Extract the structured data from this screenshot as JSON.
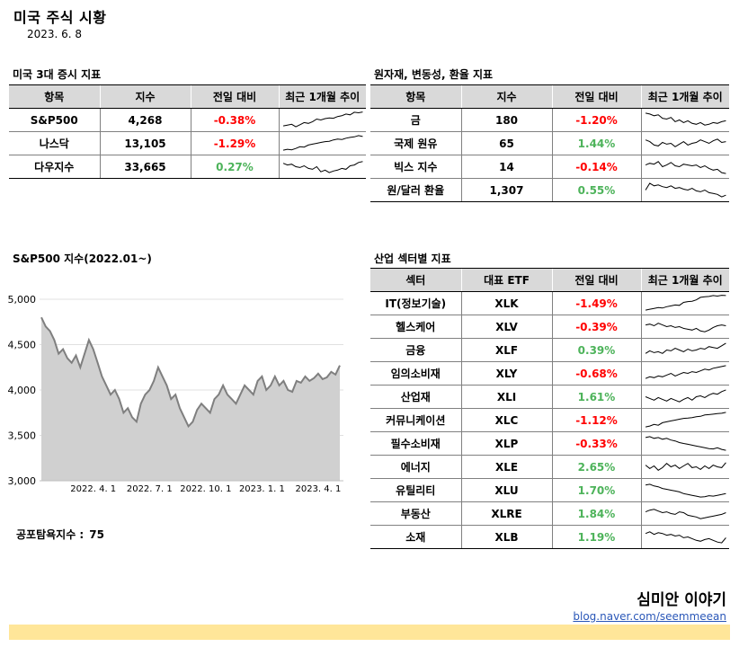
{
  "header": {
    "title": "미국 주식 시황",
    "date": "2023. 6. 8"
  },
  "indices": {
    "title": "미국 3대 증시 지표",
    "columns": [
      "항목",
      "지수",
      "전일 대비",
      "최근 1개월 추이"
    ],
    "rows": [
      {
        "name": "S&P500",
        "value": "4,268",
        "change": "-0.38%",
        "dir": "neg",
        "trend": [
          0.15,
          0.2,
          0.25,
          0.1,
          0.22,
          0.35,
          0.3,
          0.4,
          0.55,
          0.5,
          0.58,
          0.62,
          0.6,
          0.7,
          0.75,
          0.85,
          0.8,
          0.95,
          0.92,
          0.97
        ]
      },
      {
        "name": "나스닥",
        "value": "13,105",
        "change": "-1.29%",
        "dir": "neg",
        "trend": [
          0.1,
          0.15,
          0.12,
          0.2,
          0.3,
          0.28,
          0.4,
          0.45,
          0.5,
          0.55,
          0.6,
          0.62,
          0.7,
          0.75,
          0.72,
          0.8,
          0.85,
          0.88,
          0.95,
          0.9
        ]
      },
      {
        "name": "다우지수",
        "value": "33,665",
        "change": "0.27%",
        "dir": "pos",
        "trend": [
          0.7,
          0.6,
          0.65,
          0.5,
          0.45,
          0.55,
          0.4,
          0.35,
          0.5,
          0.2,
          0.3,
          0.15,
          0.25,
          0.3,
          0.4,
          0.35,
          0.55,
          0.6,
          0.75,
          0.8
        ]
      }
    ]
  },
  "commodities": {
    "title": "원자재, 변동성, 환율 지표",
    "columns": [
      "항목",
      "지수",
      "전일 대비",
      "최근 1개월 추이"
    ],
    "rows": [
      {
        "name": "금",
        "value": "180",
        "change": "-1.20%",
        "dir": "neg",
        "trend": [
          0.9,
          0.85,
          0.75,
          0.8,
          0.6,
          0.55,
          0.65,
          0.4,
          0.5,
          0.35,
          0.45,
          0.3,
          0.25,
          0.35,
          0.2,
          0.25,
          0.35,
          0.3,
          0.4,
          0.45
        ]
      },
      {
        "name": "국제 원유",
        "value": "65",
        "change": "1.44%",
        "dir": "pos",
        "trend": [
          0.7,
          0.6,
          0.4,
          0.35,
          0.55,
          0.45,
          0.5,
          0.3,
          0.45,
          0.6,
          0.4,
          0.5,
          0.55,
          0.7,
          0.6,
          0.5,
          0.65,
          0.75,
          0.55,
          0.6
        ]
      },
      {
        "name": "빅스 지수",
        "value": "14",
        "change": "-0.14%",
        "dir": "neg",
        "trend": [
          0.6,
          0.7,
          0.65,
          0.8,
          0.5,
          0.6,
          0.75,
          0.55,
          0.5,
          0.65,
          0.6,
          0.55,
          0.6,
          0.45,
          0.55,
          0.4,
          0.3,
          0.35,
          0.15,
          0.1
        ]
      },
      {
        "name": "원/달러 환율",
        "value": "1,307",
        "change": "0.55%",
        "dir": "pos",
        "trend": [
          0.5,
          0.9,
          0.75,
          0.8,
          0.7,
          0.65,
          0.75,
          0.6,
          0.65,
          0.55,
          0.5,
          0.6,
          0.45,
          0.4,
          0.5,
          0.35,
          0.3,
          0.25,
          0.1,
          0.2
        ]
      }
    ]
  },
  "sp500_chart": {
    "title": "S&P500 지수(2022.01~)"
  },
  "chart_data": {
    "type": "area",
    "ylim": [
      3000,
      5000
    ],
    "yticks": [
      "3,000",
      "3,500",
      "4,000",
      "4,500",
      "5,000"
    ],
    "xticks": [
      "2022. 4. 1",
      "2022. 7. 1",
      "2022. 10. 1",
      "2023. 1. 1",
      "2023. 4. 1"
    ],
    "xtick_index": [
      12,
      25,
      38,
      51,
      64
    ],
    "series": [
      {
        "values": [
          4800,
          4700,
          4650,
          4550,
          4400,
          4450,
          4350,
          4300,
          4380,
          4250,
          4400,
          4550,
          4450,
          4300,
          4150,
          4050,
          3950,
          4000,
          3900,
          3750,
          3800,
          3700,
          3650,
          3850,
          3950,
          4000,
          4100,
          4250,
          4150,
          4050,
          3900,
          3950,
          3800,
          3700,
          3600,
          3650,
          3780,
          3850,
          3800,
          3750,
          3900,
          3950,
          4050,
          3950,
          3900,
          3850,
          3950,
          4050,
          4000,
          3950,
          4100,
          4150,
          4000,
          4050,
          4150,
          4050,
          4100,
          4000,
          3980,
          4100,
          4080,
          4150,
          4100,
          4130,
          4180,
          4120,
          4140,
          4200,
          4170,
          4270
        ]
      }
    ]
  },
  "fear_greed": {
    "label": "공포탐욕지수 :",
    "value": "75"
  },
  "sectors": {
    "title": "산업 섹터별 지표",
    "columns": [
      "섹터",
      "대표 ETF",
      "전일 대비",
      "최근 1개월 추이"
    ],
    "rows": [
      {
        "name": "IT(정보기술)",
        "etf": "XLK",
        "change": "-1.49%",
        "dir": "neg",
        "trend": [
          0.1,
          0.15,
          0.2,
          0.25,
          0.22,
          0.3,
          0.35,
          0.4,
          0.38,
          0.55,
          0.6,
          0.62,
          0.7,
          0.85,
          0.88,
          0.9,
          0.95,
          0.92,
          0.97,
          0.95
        ]
      },
      {
        "name": "헬스케어",
        "etf": "XLV",
        "change": "-0.39%",
        "dir": "neg",
        "trend": [
          0.6,
          0.65,
          0.55,
          0.7,
          0.6,
          0.5,
          0.55,
          0.45,
          0.5,
          0.4,
          0.35,
          0.3,
          0.4,
          0.25,
          0.2,
          0.3,
          0.45,
          0.55,
          0.6,
          0.55
        ]
      },
      {
        "name": "금융",
        "etf": "XLF",
        "change": "0.39%",
        "dir": "pos",
        "trend": [
          0.3,
          0.45,
          0.35,
          0.4,
          0.3,
          0.5,
          0.45,
          0.6,
          0.5,
          0.4,
          0.55,
          0.45,
          0.5,
          0.6,
          0.55,
          0.7,
          0.65,
          0.6,
          0.75,
          0.9
        ]
      },
      {
        "name": "임의소비재",
        "etf": "XLY",
        "change": "-0.68%",
        "dir": "neg",
        "trend": [
          0.2,
          0.3,
          0.25,
          0.35,
          0.3,
          0.4,
          0.5,
          0.35,
          0.45,
          0.55,
          0.5,
          0.6,
          0.55,
          0.65,
          0.75,
          0.7,
          0.8,
          0.85,
          0.9,
          0.95
        ]
      },
      {
        "name": "산업재",
        "etf": "XLI",
        "change": "1.61%",
        "dir": "pos",
        "trend": [
          0.5,
          0.4,
          0.3,
          0.45,
          0.35,
          0.25,
          0.4,
          0.3,
          0.2,
          0.35,
          0.45,
          0.3,
          0.5,
          0.55,
          0.45,
          0.6,
          0.7,
          0.65,
          0.8,
          0.9
        ]
      },
      {
        "name": "커뮤니케이션",
        "etf": "XLC",
        "change": "-1.12%",
        "dir": "neg",
        "trend": [
          0.1,
          0.15,
          0.25,
          0.2,
          0.35,
          0.4,
          0.45,
          0.5,
          0.55,
          0.6,
          0.62,
          0.65,
          0.7,
          0.72,
          0.8,
          0.82,
          0.85,
          0.88,
          0.9,
          0.95
        ]
      },
      {
        "name": "필수소비재",
        "etf": "XLP",
        "change": "-0.33%",
        "dir": "neg",
        "trend": [
          0.85,
          0.9,
          0.8,
          0.85,
          0.75,
          0.8,
          0.7,
          0.65,
          0.55,
          0.5,
          0.45,
          0.4,
          0.35,
          0.3,
          0.25,
          0.2,
          0.18,
          0.25,
          0.15,
          0.1
        ]
      },
      {
        "name": "에너지",
        "etf": "XLE",
        "change": "2.65%",
        "dir": "pos",
        "trend": [
          0.6,
          0.4,
          0.55,
          0.3,
          0.45,
          0.7,
          0.5,
          0.6,
          0.4,
          0.55,
          0.7,
          0.45,
          0.5,
          0.35,
          0.55,
          0.4,
          0.6,
          0.5,
          0.45,
          0.75
        ]
      },
      {
        "name": "유틸리티",
        "etf": "XLU",
        "change": "1.70%",
        "dir": "pos",
        "trend": [
          0.8,
          0.85,
          0.75,
          0.7,
          0.6,
          0.55,
          0.5,
          0.45,
          0.4,
          0.3,
          0.25,
          0.2,
          0.15,
          0.1,
          0.12,
          0.18,
          0.15,
          0.2,
          0.25,
          0.3
        ]
      },
      {
        "name": "부동산",
        "etf": "XLRE",
        "change": "1.84%",
        "dir": "pos",
        "trend": [
          0.6,
          0.7,
          0.75,
          0.65,
          0.55,
          0.6,
          0.5,
          0.45,
          0.6,
          0.55,
          0.4,
          0.35,
          0.3,
          0.2,
          0.25,
          0.3,
          0.35,
          0.4,
          0.45,
          0.55
        ]
      },
      {
        "name": "소재",
        "etf": "XLB",
        "change": "1.19%",
        "dir": "pos",
        "trend": [
          0.7,
          0.8,
          0.65,
          0.75,
          0.7,
          0.6,
          0.65,
          0.55,
          0.6,
          0.45,
          0.5,
          0.4,
          0.3,
          0.25,
          0.35,
          0.4,
          0.3,
          0.2,
          0.15,
          0.45
        ]
      }
    ]
  },
  "brand": {
    "name": "심미안 이야기",
    "url": "blog.naver.com/seemmeean"
  },
  "colors": {
    "neg": "#ff0000",
    "pos": "#4db35a",
    "header_bg": "#d9d9d9",
    "footer_bar": "#ffe699",
    "area_fill": "#d0d0d0",
    "area_line": "#7f7f7f"
  }
}
